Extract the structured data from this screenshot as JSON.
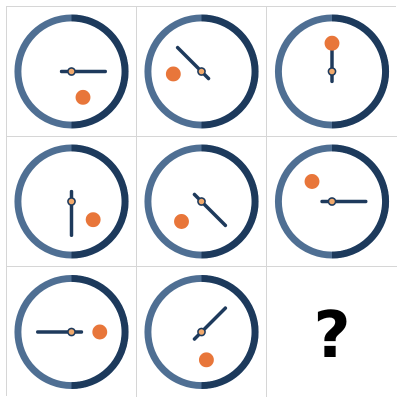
{
  "puzzle": {
    "colors": {
      "ring_dark": "#1d3a5c",
      "ring_light": "#4f6f93",
      "hand": "#1e3a5c",
      "pivot_fill": "#f2a96b",
      "dot": "#e8763a",
      "grid_line": "#d6d6d6"
    },
    "cells": [
      {
        "type": "clock",
        "hand_angle_deg": 0,
        "dot_angle_deg": 294
      },
      {
        "type": "clock",
        "hand_angle_deg": 135,
        "dot_angle_deg": 185
      },
      {
        "type": "clock",
        "hand_angle_deg": 90,
        "dot_angle_deg": 90
      },
      {
        "type": "clock",
        "hand_angle_deg": 270,
        "dot_angle_deg": 320
      },
      {
        "type": "clock",
        "hand_angle_deg": 315,
        "dot_angle_deg": 225
      },
      {
        "type": "clock",
        "hand_angle_deg": 0,
        "dot_angle_deg": 135
      },
      {
        "type": "clock",
        "hand_angle_deg": 180,
        "dot_angle_deg": 0
      },
      {
        "type": "clock",
        "hand_angle_deg": 45,
        "dot_angle_deg": 280
      },
      {
        "type": "question",
        "label": "?"
      }
    ]
  }
}
